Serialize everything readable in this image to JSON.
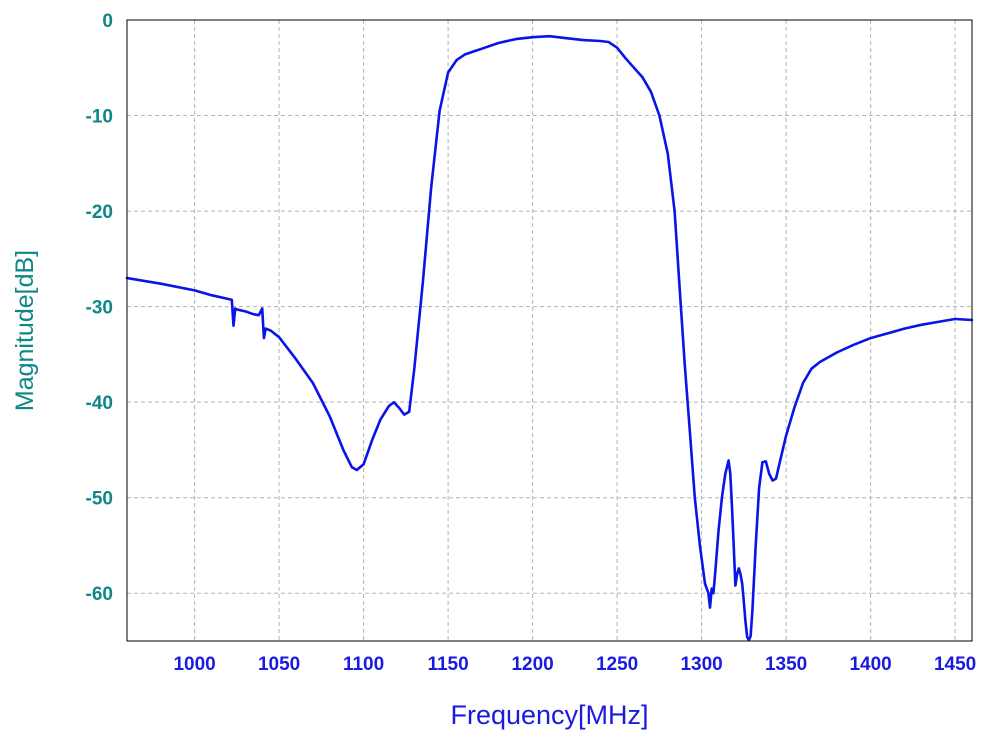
{
  "colors": {
    "background": "#ffffff",
    "plot_frame": "#000000",
    "grid": "#b4b4b4",
    "series": "#0a14e6",
    "y_text": "#0f8787",
    "x_text": "#1a1ae0"
  },
  "chart_data": {
    "type": "line",
    "title": "",
    "xlabel": "Frequency[MHz]",
    "ylabel": "Magnitude[dB]",
    "xlim": [
      960,
      1460
    ],
    "ylim": [
      -65,
      0
    ],
    "x_ticks": [
      1000,
      1050,
      1100,
      1150,
      1200,
      1250,
      1300,
      1350,
      1400,
      1450
    ],
    "y_ticks": [
      0,
      -10,
      -20,
      -30,
      -40,
      -50,
      -60
    ],
    "grid": true,
    "legend": "none",
    "series": [
      {
        "x": [
          960,
          980,
          1000,
          1010,
          1020,
          1022,
          1023,
          1024,
          1025,
          1030,
          1035,
          1038,
          1040,
          1041,
          1042,
          1045,
          1050,
          1060,
          1070,
          1080,
          1088,
          1093,
          1096,
          1100,
          1105,
          1110,
          1115,
          1118,
          1121,
          1124,
          1127,
          1130,
          1135,
          1140,
          1145,
          1150,
          1155,
          1160,
          1165,
          1170,
          1180,
          1190,
          1200,
          1210,
          1220,
          1230,
          1240,
          1245,
          1250,
          1255,
          1260,
          1265,
          1270,
          1275,
          1280,
          1284,
          1287,
          1290,
          1293,
          1296,
          1299,
          1302,
          1304,
          1305,
          1306,
          1307,
          1308,
          1310,
          1312,
          1314,
          1316,
          1317,
          1318,
          1319,
          1320,
          1321,
          1322,
          1323,
          1324,
          1325,
          1326,
          1327,
          1328,
          1329,
          1330,
          1332,
          1334,
          1336,
          1338,
          1340,
          1342,
          1344,
          1346,
          1350,
          1355,
          1360,
          1365,
          1370,
          1380,
          1390,
          1400,
          1410,
          1420,
          1430,
          1440,
          1450,
          1460
        ],
        "y": [
          -27,
          -27.6,
          -28.3,
          -28.8,
          -29.2,
          -29.3,
          -32,
          -30.2,
          -30.3,
          -30.5,
          -30.8,
          -30.9,
          -30.2,
          -33.3,
          -32.3,
          -32.5,
          -33.2,
          -35.5,
          -38.0,
          -41.5,
          -45.0,
          -46.8,
          -47.1,
          -46.5,
          -44.0,
          -41.8,
          -40.4,
          -40.0,
          -40.6,
          -41.3,
          -41.0,
          -36.5,
          -27.5,
          -17.5,
          -9.5,
          -5.5,
          -4.2,
          -3.6,
          -3.3,
          -3.0,
          -2.4,
          -2.0,
          -1.8,
          -1.7,
          -1.9,
          -2.1,
          -2.2,
          -2.3,
          -2.9,
          -4.0,
          -5.0,
          -6.0,
          -7.5,
          -10.0,
          -14.0,
          -20.0,
          -28.0,
          -36.0,
          -43.0,
          -50.0,
          -55.0,
          -59.0,
          -60.0,
          -61.5,
          -59.5,
          -60.0,
          -58.0,
          -53.5,
          -50.0,
          -47.5,
          -46.1,
          -47.5,
          -51.0,
          -55.0,
          -59.2,
          -58.0,
          -57.4,
          -58.0,
          -59.0,
          -61.0,
          -63.0,
          -64.6,
          -64.9,
          -64.5,
          -62.0,
          -55.0,
          -49.0,
          -46.3,
          -46.2,
          -47.5,
          -48.2,
          -48.0,
          -46.5,
          -43.5,
          -40.5,
          -38.0,
          -36.5,
          -35.8,
          -34.8,
          -34.0,
          -33.3,
          -32.8,
          -32.3,
          -31.9,
          -31.6,
          -31.3,
          -31.4
        ]
      }
    ]
  }
}
